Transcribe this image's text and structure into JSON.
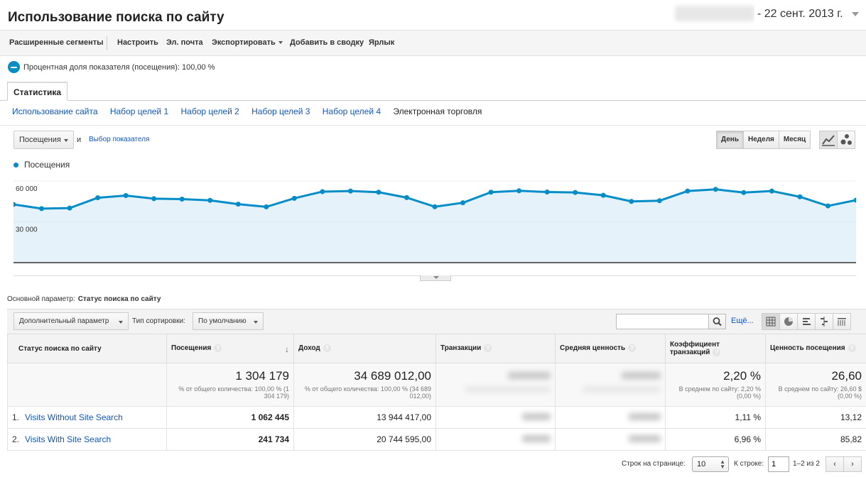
{
  "header": {
    "title": "Использование поиска по сайту",
    "date_range": "- 22 сент. 2013 г."
  },
  "toolbar": {
    "advanced_segments": "Расширенные сегменты",
    "customize": "Настроить",
    "email": "Эл. почта",
    "export": "Экспортировать",
    "add_to_dashboard": "Добавить в сводку",
    "shortcut": "Ярлык"
  },
  "segment": {
    "label": "Процентная доля показателя (посещения): 100,00 %"
  },
  "tabs": {
    "active": "Статистика",
    "subtabs": [
      "Использование сайта",
      "Набор целей 1",
      "Набор целей 2",
      "Набор целей 3",
      "Набор целей 4",
      "Электронная торговля"
    ]
  },
  "chart_controls": {
    "metric": "Посещения",
    "and": "и",
    "choose_metric": "Выбор показателя",
    "periods": [
      "День",
      "Неделя",
      "Месяц"
    ]
  },
  "chart_data": {
    "type": "area",
    "series": [
      {
        "name": "Посещения",
        "values": [
          42800,
          39700,
          40100,
          47700,
          49300,
          47000,
          46700,
          45800,
          43000,
          41000,
          47300,
          52200,
          52600,
          51800,
          47800,
          41100,
          44000,
          51800,
          52800,
          51900,
          51600,
          49500,
          45000,
          45500,
          52600,
          53900,
          51500,
          52600,
          48400,
          41700,
          45900
        ]
      }
    ],
    "yticks": [
      "60 000",
      "30 000"
    ],
    "ylim": [
      0,
      60000
    ],
    "grid": true,
    "color": "#058dc7",
    "fill": "#e6f2f9"
  },
  "table": {
    "primary_dimension_label": "Основной параметр:",
    "primary_dimension_value": "Статус поиска по сайту",
    "secondary_dimension": "Дополнительный параметр",
    "sort_label": "Тип сортировки:",
    "sort_value": "По умолчанию",
    "search_placeholder": "",
    "more": "Ещё...",
    "headers": [
      "Статус поиска по сайту",
      "Посещения",
      "Доход",
      "Транзакции",
      "Средняя ценность",
      "Коэффициент транзакций",
      "Ценность посещения"
    ],
    "totals": {
      "visits": "1 304 179",
      "visits_sub": "% от общего количества: 100,00 % (1 304 179)",
      "revenue": "34 689 012,00",
      "revenue_sub": "% от общего количества: 100,00 % (34 689 012,00)",
      "conv": "2,20 %",
      "conv_sub": "В среднем по сайту: 2,20 % (0,00 %)",
      "value": "26,60",
      "value_sub": "В среднем по сайту: 26,60 $ (0,00 %)"
    },
    "rows": [
      {
        "idx": "1.",
        "name": "Visits Without Site Search",
        "visits": "1 062 445",
        "revenue": "13 944 417,00",
        "conv": "1,11 %",
        "value": "13,12"
      },
      {
        "idx": "2.",
        "name": "Visits With Site Search",
        "visits": "241 734",
        "revenue": "20 744 595,00",
        "conv": "6,96 %",
        "value": "85,82"
      }
    ]
  },
  "pager": {
    "rows_label": "Строк на странице:",
    "rows_value": "10",
    "goto_label": "К строке:",
    "goto_value": "1",
    "range": "1–2 из 2",
    "prev": "‹",
    "next": "›"
  }
}
